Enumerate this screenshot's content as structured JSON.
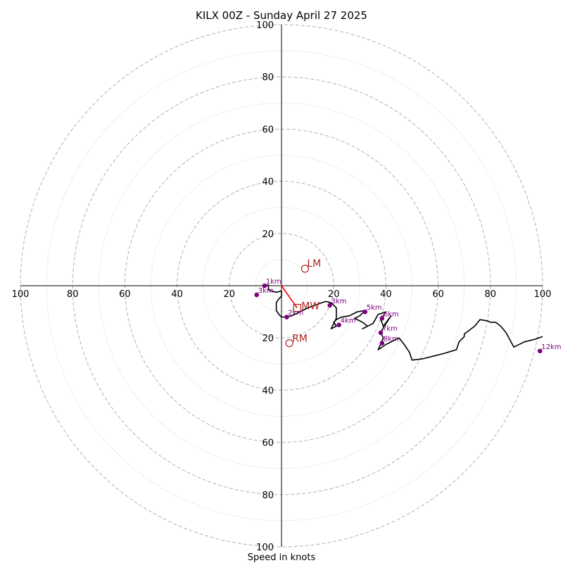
{
  "chart_data": {
    "type": "hodograph",
    "title": "KILX 00Z - Sunday April 27 2025",
    "xlabel": "Speed in knots",
    "xlim": [
      -100,
      100
    ],
    "ylim": [
      -100,
      100
    ],
    "ring_major": [
      20,
      40,
      60,
      80,
      100
    ],
    "ring_minor": [
      10,
      30,
      50,
      70,
      90
    ],
    "x_ticks": [
      {
        "value": -100,
        "label": "100"
      },
      {
        "value": -80,
        "label": "80"
      },
      {
        "value": -60,
        "label": "60"
      },
      {
        "value": -40,
        "label": "40"
      },
      {
        "value": -20,
        "label": "20"
      },
      {
        "value": 20,
        "label": "20"
      },
      {
        "value": 40,
        "label": "40"
      },
      {
        "value": 60,
        "label": "60"
      },
      {
        "value": 80,
        "label": "80"
      },
      {
        "value": 100,
        "label": "100"
      }
    ],
    "y_ticks": [
      {
        "value": 100,
        "label": "100"
      },
      {
        "value": 80,
        "label": "80"
      },
      {
        "value": 60,
        "label": "60"
      },
      {
        "value": 40,
        "label": "40"
      },
      {
        "value": 20,
        "label": "20"
      },
      {
        "value": -20,
        "label": "20"
      },
      {
        "value": -40,
        "label": "40"
      },
      {
        "value": -60,
        "label": "60"
      },
      {
        "value": -80,
        "label": "80"
      },
      {
        "value": -100,
        "label": "100"
      }
    ],
    "hodograph": [
      [
        -6.5,
        0
      ],
      [
        -5,
        0.3
      ],
      [
        -5,
        -1.5
      ],
      [
        -4,
        -2
      ],
      [
        -2,
        -2.5
      ],
      [
        0,
        -2
      ],
      [
        0,
        -4
      ],
      [
        -1,
        -5
      ],
      [
        -2,
        -6.5
      ],
      [
        -2,
        -9.5
      ],
      [
        -1,
        -11
      ],
      [
        0,
        -12
      ],
      [
        2,
        -12
      ],
      [
        4,
        -11.5
      ],
      [
        7,
        -10
      ],
      [
        10,
        -8.5
      ],
      [
        14,
        -7
      ],
      [
        17,
        -6
      ],
      [
        19,
        -6.5
      ],
      [
        21,
        -8.5
      ],
      [
        21,
        -12.5
      ],
      [
        19,
        -16.5
      ],
      [
        21,
        -15.5
      ],
      [
        20,
        -14
      ],
      [
        21,
        -13
      ],
      [
        23,
        -12
      ],
      [
        26,
        -11.5
      ],
      [
        29,
        -10
      ],
      [
        32,
        -9.5
      ],
      [
        30,
        -11.5
      ],
      [
        28,
        -12.5
      ],
      [
        31,
        -14
      ],
      [
        33,
        -15.5
      ],
      [
        31,
        -16.5
      ],
      [
        35,
        -14.5
      ],
      [
        37,
        -11
      ],
      [
        40,
        -10
      ],
      [
        38,
        -13
      ],
      [
        39,
        -15.5
      ],
      [
        42,
        -11.5
      ],
      [
        39,
        -16
      ],
      [
        38,
        -18
      ],
      [
        39,
        -20
      ],
      [
        37,
        -24.5
      ],
      [
        40,
        -22.5
      ],
      [
        45,
        -20
      ],
      [
        47,
        -22.5
      ],
      [
        49,
        -25.5
      ],
      [
        50,
        -28.5
      ],
      [
        54,
        -28
      ],
      [
        58,
        -27
      ],
      [
        62,
        -26
      ],
      [
        67,
        -24.5
      ],
      [
        68,
        -21.5
      ],
      [
        70,
        -19.5
      ],
      [
        70,
        -18.5
      ],
      [
        74,
        -15.5
      ],
      [
        76,
        -13
      ],
      [
        79,
        -13.5
      ],
      [
        80,
        -14
      ],
      [
        82,
        -14
      ],
      [
        84,
        -15.5
      ],
      [
        86,
        -18
      ],
      [
        89,
        -23.5
      ],
      [
        93,
        -21.5
      ],
      [
        97,
        -20.5
      ],
      [
        100,
        -19.5
      ]
    ],
    "height_markers": [
      {
        "label": "1km",
        "u": -6.5,
        "v": 0
      },
      {
        "label": "3km",
        "u": -9.5,
        "v": -3.5
      },
      {
        "label": "2km",
        "u": 2,
        "v": -12
      },
      {
        "label": "3km",
        "u": 18.5,
        "v": -7.5
      },
      {
        "label": "4km",
        "u": 22,
        "v": -15
      },
      {
        "label": "5km",
        "u": 32,
        "v": -10
      },
      {
        "label": "6km",
        "u": 38.5,
        "v": -12.5
      },
      {
        "label": "7km",
        "u": 38,
        "v": -18
      },
      {
        "label": "8km",
        "u": 38.5,
        "v": -22
      },
      {
        "label": "12km",
        "u": 99,
        "v": -25
      }
    ],
    "storm_motion": {
      "lm": {
        "label": "LM",
        "u": 9,
        "v": 6.5
      },
      "rm": {
        "label": "RM",
        "u": 3,
        "v": -22
      },
      "mw": {
        "label": "MW",
        "u": 6,
        "v": -8.5
      }
    },
    "shear_vector": [
      [
        0,
        0
      ],
      [
        6,
        -8.5
      ]
    ],
    "colors": {
      "trace": "#000000",
      "marker": "#800080",
      "storm": "#b22222",
      "shear": "#ff0000",
      "ring_major": "#b0b0b0",
      "ring_minor": "#cccccc"
    }
  }
}
